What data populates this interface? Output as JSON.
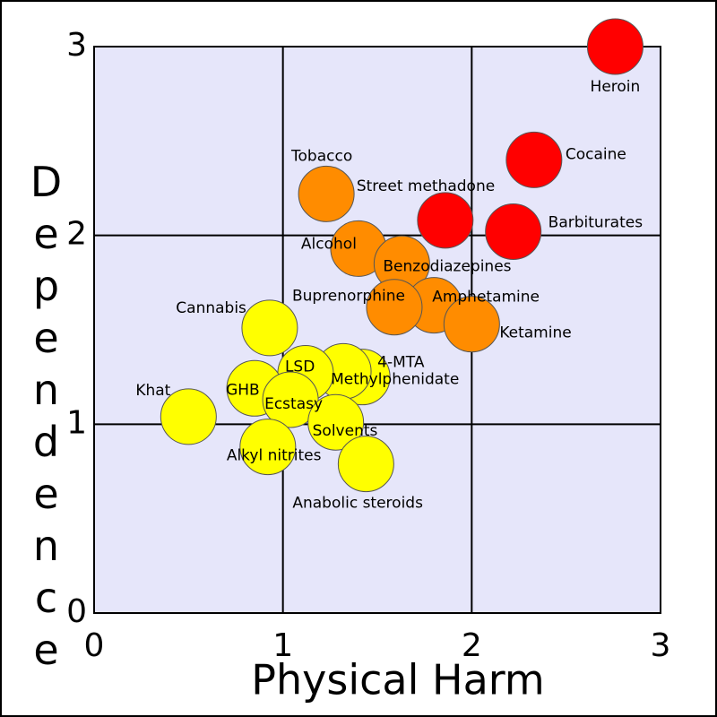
{
  "chart_data": {
    "type": "scatter",
    "x_label": "Physical Harm",
    "y_label": "Dependence",
    "xlim": [
      0,
      3
    ],
    "ylim": [
      0,
      3
    ],
    "xticks": [
      0,
      1,
      2,
      3
    ],
    "yticks": [
      0,
      1,
      2,
      3
    ],
    "grid": true,
    "labels": [
      "Heroin",
      "Cocaine",
      "Barbiturates",
      "Street methadone",
      "Tobacco",
      "Alcohol",
      "Benzodiazepines",
      "Amphetamine",
      "Buprenorphine",
      "Ketamine",
      "Cannabis",
      "4-MTA",
      "Methylphenidate",
      "LSD",
      "GHB",
      "Ecstasy",
      "Solvents",
      "Khat",
      "Alkyl nitrites",
      "Anabolic steroids"
    ],
    "x": [
      2.76,
      2.33,
      2.22,
      1.86,
      1.23,
      1.4,
      1.63,
      1.8,
      1.59,
      2.0,
      0.93,
      1.42,
      1.32,
      1.12,
      0.85,
      1.04,
      1.28,
      0.5,
      0.92,
      1.44
    ],
    "y": [
      3.0,
      2.4,
      2.02,
      2.08,
      2.22,
      1.93,
      1.85,
      1.63,
      1.62,
      1.53,
      1.51,
      1.25,
      1.28,
      1.27,
      1.19,
      1.13,
      1.01,
      1.04,
      0.88,
      0.79
    ],
    "colors": [
      "#ff0000",
      "#ff0000",
      "#ff0000",
      "#ff0000",
      "#ff8c00",
      "#ff8c00",
      "#ff8c00",
      "#ff8c00",
      "#ff8c00",
      "#ff8c00",
      "#ffff00",
      "#ffff00",
      "#ffff00",
      "#ffff00",
      "#ffff00",
      "#ffff00",
      "#ffff00",
      "#ffff00",
      "#ffff00",
      "#ffff00"
    ],
    "background": "#e6e6fa"
  }
}
